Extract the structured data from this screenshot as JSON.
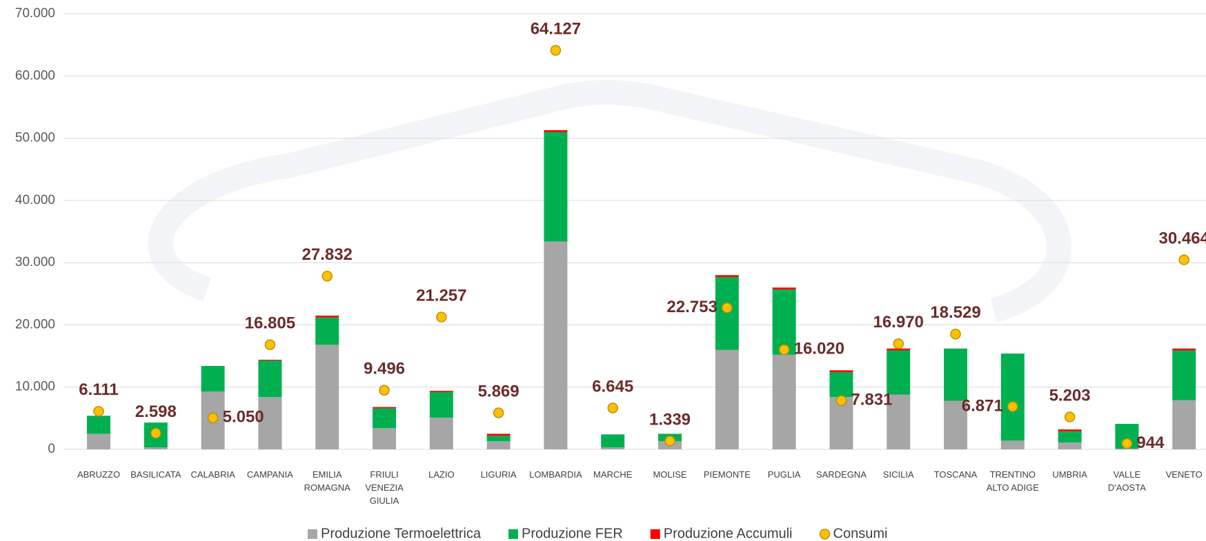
{
  "chart_data": {
    "type": "bar",
    "stacked": true,
    "grid": true,
    "legend": "bottom",
    "categories": [
      "ABRUZZO",
      "BASILICATA",
      "CALABRIA",
      "CAMPANIA",
      "EMILIA ROMAGNA",
      "FRIULI VENEZIA GIULIA",
      "LAZIO",
      "LIGURIA",
      "LOMBARDIA",
      "MARCHE",
      "MOLISE",
      "PIEMONTE",
      "PUGLIA",
      "SARDEGNA",
      "SICILIA",
      "TOSCANA",
      "TRENTINO ALTO ADIGE",
      "UMBRIA",
      "VALLE D'AOSTA",
      "VENETO"
    ],
    "series": [
      {
        "name": "Produzione Termoelettrica",
        "color": "#a6a6a6",
        "values": [
          2500,
          300,
          9300,
          8400,
          16800,
          3400,
          5100,
          1300,
          33400,
          300,
          1300,
          16000,
          15200,
          8400,
          8800,
          7800,
          1400,
          1100,
          100,
          7900
        ]
      },
      {
        "name": "Produzione FER",
        "color": "#00b050",
        "values": [
          2900,
          4000,
          4100,
          5900,
          4400,
          3200,
          4100,
          900,
          17600,
          2100,
          1200,
          11700,
          10500,
          4000,
          7100,
          8400,
          14000,
          1800,
          4000,
          8000
        ]
      },
      {
        "name": "Produzione Accumuli",
        "color": "#ff0000",
        "values": [
          0,
          0,
          0,
          100,
          300,
          200,
          200,
          300,
          300,
          0,
          0,
          300,
          300,
          300,
          300,
          0,
          0,
          300,
          0,
          300
        ]
      },
      {
        "name": "Consumi",
        "type": "scatter",
        "color": "#ffc000",
        "values": [
          6111,
          2598,
          5050,
          16805,
          27832,
          9496,
          21257,
          5869,
          64127,
          6645,
          1339,
          22753,
          16020,
          7831,
          16970,
          18529,
          6871,
          5203,
          944,
          30464
        ],
        "value_labels": [
          "6.111",
          "2.598",
          "5.050",
          "16.805",
          "27.832",
          "9.496",
          "21.257",
          "5.869",
          "64.127",
          "6.645",
          "1.339",
          "22.753",
          "16.020",
          "7.831",
          "16.970",
          "18.529",
          "6.871",
          "5.203",
          "944",
          "30.464"
        ]
      }
    ],
    "ylim": [
      0,
      70000
    ],
    "yticks": [
      0,
      {
        "value": 10000,
        "label": "10.000"
      },
      {
        "value": 20000,
        "label": "20.000"
      },
      {
        "value": 30000,
        "label": "30.000"
      },
      {
        "value": 40000,
        "label": "40.000"
      },
      {
        "value": 50000,
        "label": "50.000"
      },
      {
        "value": 60000,
        "label": "60.000"
      },
      {
        "value": 70000,
        "label": "70.000"
      }
    ]
  }
}
